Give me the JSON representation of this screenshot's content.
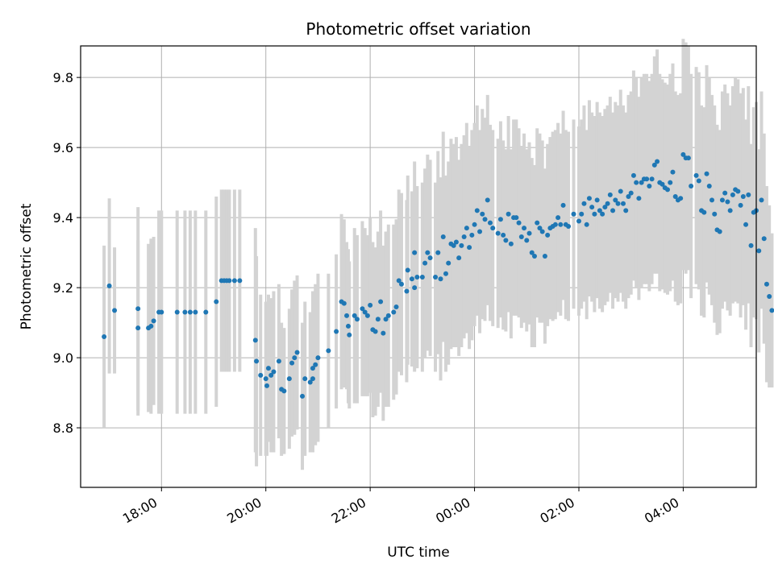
{
  "chart_data": {
    "type": "scatter",
    "title": "Photometric offset variation",
    "xlabel": "UTC time",
    "ylabel": "Photometric offset",
    "x_unit": "hours",
    "x_ticks": [
      {
        "value": 18,
        "label": "18:00"
      },
      {
        "value": 20,
        "label": "20:00"
      },
      {
        "value": 22,
        "label": "22:00"
      },
      {
        "value": 24,
        "label": "00:00"
      },
      {
        "value": 26,
        "label": "02:00"
      },
      {
        "value": 28,
        "label": "04:00"
      }
    ],
    "y_ticks": [
      {
        "value": 8.8,
        "label": "8.8"
      },
      {
        "value": 9.0,
        "label": "9.0"
      },
      {
        "value": 9.2,
        "label": "9.2"
      },
      {
        "value": 9.4,
        "label": "9.4"
      },
      {
        "value": 9.6,
        "label": "9.6"
      },
      {
        "value": 9.8,
        "label": "9.8"
      }
    ],
    "xlim": [
      16.45,
      29.4
    ],
    "ylim": [
      8.63,
      9.89
    ],
    "grid": true,
    "point_color": "#1f77b4",
    "errorbar_color": "#d3d3d3",
    "points": [
      [
        16.9,
        9.06,
        0.26
      ],
      [
        17.0,
        9.205,
        0.25
      ],
      [
        17.1,
        9.135,
        0.18
      ],
      [
        17.55,
        9.14,
        0.29
      ],
      [
        17.55,
        9.085,
        0.25
      ],
      [
        17.75,
        9.085,
        0.24
      ],
      [
        17.8,
        9.09,
        0.25
      ],
      [
        17.85,
        9.105,
        0.24
      ],
      [
        17.95,
        9.13,
        0.29
      ],
      [
        18.0,
        9.13,
        0.29
      ],
      [
        18.3,
        9.13,
        0.29
      ],
      [
        18.45,
        9.13,
        0.29
      ],
      [
        18.55,
        9.13,
        0.29
      ],
      [
        18.65,
        9.13,
        0.29
      ],
      [
        18.85,
        9.13,
        0.29
      ],
      [
        19.05,
        9.16,
        0.3
      ],
      [
        19.15,
        9.22,
        0.26
      ],
      [
        19.2,
        9.22,
        0.26
      ],
      [
        19.25,
        9.22,
        0.26
      ],
      [
        19.3,
        9.22,
        0.26
      ],
      [
        19.4,
        9.22,
        0.26
      ],
      [
        19.5,
        9.22,
        0.26
      ],
      [
        19.8,
        9.05,
        0.32
      ],
      [
        19.82,
        8.99,
        0.3
      ],
      [
        19.9,
        8.95,
        0.23
      ],
      [
        20.0,
        8.94,
        0.22
      ],
      [
        20.02,
        8.92,
        0.2
      ],
      [
        20.05,
        8.97,
        0.21
      ],
      [
        20.1,
        8.95,
        0.22
      ],
      [
        20.15,
        8.96,
        0.23
      ],
      [
        20.25,
        8.99,
        0.22
      ],
      [
        20.3,
        8.91,
        0.19
      ],
      [
        20.35,
        8.905,
        0.18
      ],
      [
        20.45,
        8.94,
        0.2
      ],
      [
        20.5,
        8.985,
        0.21
      ],
      [
        20.55,
        9.0,
        0.22
      ],
      [
        20.6,
        9.015,
        0.22
      ],
      [
        20.7,
        8.89,
        0.21
      ],
      [
        20.75,
        8.94,
        0.22
      ],
      [
        20.85,
        8.93,
        0.2
      ],
      [
        20.9,
        8.94,
        0.21
      ],
      [
        20.9,
        8.97,
        0.22
      ],
      [
        20.95,
        8.98,
        0.23
      ],
      [
        21.0,
        9.0,
        0.24
      ],
      [
        21.2,
        9.02,
        0.22
      ],
      [
        21.35,
        9.075,
        0.22
      ],
      [
        21.45,
        9.16,
        0.25
      ],
      [
        21.5,
        9.155,
        0.24
      ],
      [
        21.55,
        9.12,
        0.21
      ],
      [
        21.58,
        9.09,
        0.22
      ],
      [
        21.6,
        9.065,
        0.21
      ],
      [
        21.7,
        9.12,
        0.25
      ],
      [
        21.75,
        9.11,
        0.24
      ],
      [
        21.85,
        9.14,
        0.25
      ],
      [
        21.9,
        9.13,
        0.24
      ],
      [
        21.95,
        9.12,
        0.23
      ],
      [
        22.0,
        9.15,
        0.25
      ],
      [
        22.05,
        9.08,
        0.25
      ],
      [
        22.1,
        9.075,
        0.24
      ],
      [
        22.15,
        9.11,
        0.25
      ],
      [
        22.2,
        9.16,
        0.26
      ],
      [
        22.25,
        9.07,
        0.25
      ],
      [
        22.3,
        9.11,
        0.25
      ],
      [
        22.35,
        9.12,
        0.26
      ],
      [
        22.45,
        9.13,
        0.25
      ],
      [
        22.5,
        9.145,
        0.25
      ],
      [
        22.55,
        9.22,
        0.26
      ],
      [
        22.6,
        9.21,
        0.26
      ],
      [
        22.7,
        9.19,
        0.26
      ],
      [
        22.72,
        9.25,
        0.27
      ],
      [
        22.8,
        9.225,
        0.25
      ],
      [
        22.85,
        9.2,
        0.24
      ],
      [
        22.85,
        9.3,
        0.26
      ],
      [
        22.9,
        9.23,
        0.26
      ],
      [
        23.0,
        9.23,
        0.27
      ],
      [
        23.05,
        9.27,
        0.27
      ],
      [
        23.1,
        9.3,
        0.28
      ],
      [
        23.15,
        9.285,
        0.28
      ],
      [
        23.25,
        9.23,
        0.27
      ],
      [
        23.3,
        9.3,
        0.29
      ],
      [
        23.35,
        9.225,
        0.29
      ],
      [
        23.4,
        9.345,
        0.3
      ],
      [
        23.45,
        9.24,
        0.28
      ],
      [
        23.5,
        9.27,
        0.29
      ],
      [
        23.55,
        9.325,
        0.3
      ],
      [
        23.6,
        9.32,
        0.29
      ],
      [
        23.65,
        9.33,
        0.3
      ],
      [
        23.7,
        9.285,
        0.28
      ],
      [
        23.75,
        9.32,
        0.29
      ],
      [
        23.8,
        9.345,
        0.29
      ],
      [
        23.85,
        9.37,
        0.3
      ],
      [
        23.9,
        9.315,
        0.29
      ],
      [
        23.95,
        9.35,
        0.3
      ],
      [
        24.0,
        9.38,
        0.29
      ],
      [
        24.05,
        9.42,
        0.3
      ],
      [
        24.1,
        9.36,
        0.29
      ],
      [
        24.15,
        9.41,
        0.3
      ],
      [
        24.2,
        9.395,
        0.29
      ],
      [
        24.25,
        9.45,
        0.3
      ],
      [
        24.3,
        9.385,
        0.28
      ],
      [
        24.35,
        9.37,
        0.28
      ],
      [
        24.45,
        9.355,
        0.27
      ],
      [
        24.5,
        9.395,
        0.28
      ],
      [
        24.55,
        9.35,
        0.27
      ],
      [
        24.6,
        9.335,
        0.26
      ],
      [
        24.65,
        9.41,
        0.28
      ],
      [
        24.7,
        9.325,
        0.27
      ],
      [
        24.75,
        9.4,
        0.28
      ],
      [
        24.8,
        9.4,
        0.28
      ],
      [
        24.85,
        9.385,
        0.27
      ],
      [
        24.9,
        9.345,
        0.26
      ],
      [
        24.95,
        9.37,
        0.27
      ],
      [
        25.0,
        9.335,
        0.26
      ],
      [
        25.05,
        9.355,
        0.26
      ],
      [
        25.1,
        9.3,
        0.27
      ],
      [
        25.15,
        9.29,
        0.26
      ],
      [
        25.2,
        9.385,
        0.27
      ],
      [
        25.25,
        9.37,
        0.27
      ],
      [
        25.3,
        9.36,
        0.26
      ],
      [
        25.35,
        9.29,
        0.25
      ],
      [
        25.4,
        9.35,
        0.26
      ],
      [
        25.45,
        9.37,
        0.26
      ],
      [
        25.5,
        9.375,
        0.27
      ],
      [
        25.55,
        9.38,
        0.27
      ],
      [
        25.6,
        9.4,
        0.27
      ],
      [
        25.65,
        9.38,
        0.26
      ],
      [
        25.7,
        9.435,
        0.27
      ],
      [
        25.75,
        9.38,
        0.27
      ],
      [
        25.8,
        9.375,
        0.27
      ],
      [
        25.9,
        9.41,
        0.27
      ],
      [
        26.0,
        9.39,
        0.27
      ],
      [
        26.05,
        9.41,
        0.27
      ],
      [
        26.1,
        9.44,
        0.28
      ],
      [
        26.15,
        9.38,
        0.27
      ],
      [
        26.2,
        9.455,
        0.28
      ],
      [
        26.25,
        9.43,
        0.27
      ],
      [
        26.3,
        9.41,
        0.28
      ],
      [
        26.35,
        9.45,
        0.28
      ],
      [
        26.4,
        9.42,
        0.28
      ],
      [
        26.45,
        9.41,
        0.28
      ],
      [
        26.5,
        9.43,
        0.28
      ],
      [
        26.55,
        9.44,
        0.28
      ],
      [
        26.6,
        9.465,
        0.28
      ],
      [
        26.65,
        9.42,
        0.28
      ],
      [
        26.7,
        9.45,
        0.28
      ],
      [
        26.75,
        9.44,
        0.28
      ],
      [
        26.8,
        9.475,
        0.29
      ],
      [
        26.85,
        9.44,
        0.28
      ],
      [
        26.9,
        9.42,
        0.28
      ],
      [
        26.95,
        9.46,
        0.29
      ],
      [
        27.0,
        9.47,
        0.29
      ],
      [
        27.05,
        9.52,
        0.3
      ],
      [
        27.1,
        9.5,
        0.3
      ],
      [
        27.15,
        9.455,
        0.29
      ],
      [
        27.2,
        9.5,
        0.3
      ],
      [
        27.25,
        9.51,
        0.3
      ],
      [
        27.3,
        9.51,
        0.3
      ],
      [
        27.35,
        9.49,
        0.3
      ],
      [
        27.4,
        9.51,
        0.3
      ],
      [
        27.45,
        9.55,
        0.31
      ],
      [
        27.5,
        9.56,
        0.32
      ],
      [
        27.55,
        9.5,
        0.31
      ],
      [
        27.6,
        9.495,
        0.3
      ],
      [
        27.65,
        9.485,
        0.3
      ],
      [
        27.7,
        9.48,
        0.3
      ],
      [
        27.75,
        9.5,
        0.31
      ],
      [
        27.8,
        9.53,
        0.31
      ],
      [
        27.85,
        9.46,
        0.3
      ],
      [
        27.9,
        9.45,
        0.3
      ],
      [
        27.95,
        9.455,
        0.3
      ],
      [
        28.0,
        9.58,
        0.33
      ],
      [
        28.05,
        9.57,
        0.33
      ],
      [
        28.1,
        9.57,
        0.32
      ],
      [
        28.15,
        9.49,
        0.32
      ],
      [
        28.25,
        9.52,
        0.31
      ],
      [
        28.3,
        9.505,
        0.31
      ],
      [
        28.35,
        9.42,
        0.3
      ],
      [
        28.4,
        9.415,
        0.3
      ],
      [
        28.45,
        9.525,
        0.31
      ],
      [
        28.5,
        9.49,
        0.31
      ],
      [
        28.55,
        9.45,
        0.3
      ],
      [
        28.6,
        9.41,
        0.31
      ],
      [
        28.65,
        9.365,
        0.3
      ],
      [
        28.7,
        9.36,
        0.29
      ],
      [
        28.75,
        9.45,
        0.31
      ],
      [
        28.8,
        9.47,
        0.31
      ],
      [
        28.85,
        9.445,
        0.31
      ],
      [
        28.9,
        9.42,
        0.3
      ],
      [
        28.95,
        9.465,
        0.31
      ],
      [
        29.0,
        9.48,
        0.32
      ],
      [
        29.05,
        9.475,
        0.32
      ],
      [
        29.1,
        9.435,
        0.32
      ],
      [
        29.15,
        9.46,
        0.31
      ],
      [
        29.2,
        9.38,
        0.3
      ],
      [
        29.25,
        9.465,
        0.31
      ],
      [
        29.3,
        9.32,
        0.29
      ],
      [
        29.35,
        9.415,
        0.3
      ],
      [
        29.4,
        9.42,
        0.31
      ],
      [
        29.45,
        9.305,
        0.29
      ],
      [
        29.5,
        9.45,
        0.31
      ],
      [
        29.55,
        9.34,
        0.3
      ],
      [
        29.6,
        9.21,
        0.28
      ],
      [
        29.65,
        9.175,
        0.26
      ],
      [
        29.7,
        9.135,
        0.22
      ]
    ]
  }
}
